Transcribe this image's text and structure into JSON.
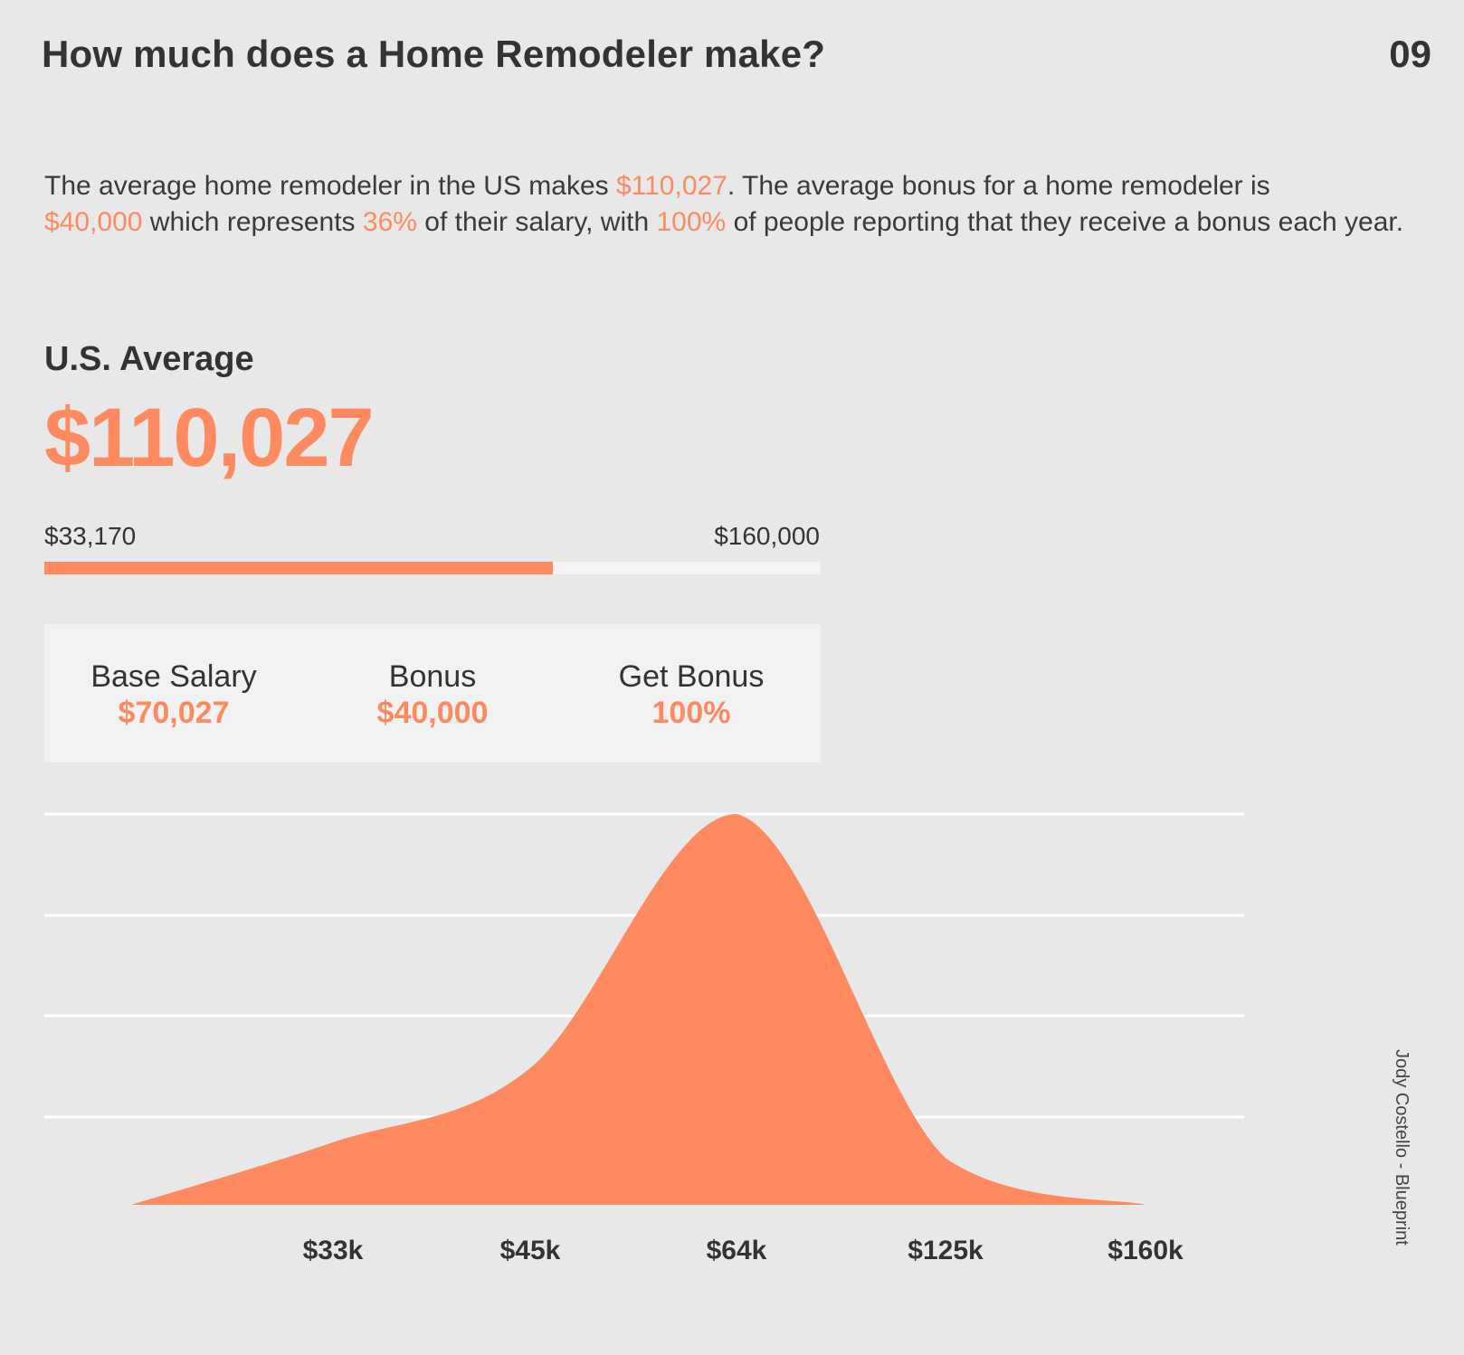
{
  "header": {
    "title": "How much does a Home Remodeler make?",
    "page_number": "09"
  },
  "intro": {
    "t1": "The average home remodeler in the US makes ",
    "h1": "$110,027",
    "t2": ". The average bonus for a home remodeler is ",
    "h2": "$40,000",
    "t3": " which represents ",
    "h3": "36%",
    "t4": " of their salary, with ",
    "h4": "100%",
    "t5": " of people reporting that they receive a bonus each year."
  },
  "average": {
    "label": "U.S. Average",
    "value": "$110,027"
  },
  "range": {
    "min_label": "$33,170",
    "max_label": "$160,000",
    "fill_fraction": 0.655
  },
  "stats": [
    {
      "label": "Base Salary",
      "value": "$70,027"
    },
    {
      "label": "Bonus",
      "value": "$40,000"
    },
    {
      "label": "Get Bonus",
      "value": "100%"
    }
  ],
  "credit": "Jody Costello - Blueprint",
  "colors": {
    "accent": "#ff8a5f",
    "background": "#e8e8e8",
    "panel": "#f2f2f2",
    "gridline": "#ffffff",
    "text": "#333333"
  },
  "chart_data": {
    "type": "area",
    "title": "",
    "xlabel": "",
    "ylabel": "",
    "grid": true,
    "categories": [
      "$33k",
      "$45k",
      "$64k",
      "$125k",
      "$160k"
    ],
    "series": [
      {
        "values": [
          0.16,
          0.35,
          1.0,
          0.12,
          0.0
        ]
      }
    ],
    "ylim": [
      0,
      1
    ]
  }
}
